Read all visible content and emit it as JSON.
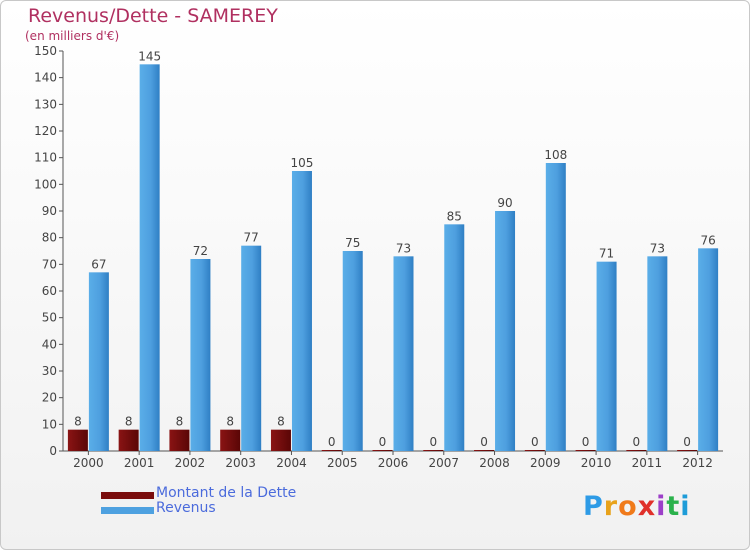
{
  "title": "Revenus/Dette - SAMEREY",
  "subtitle": "(en milliers d'€)",
  "logo": {
    "letters": [
      "P",
      "r",
      "o",
      "x",
      "i",
      "t",
      "i"
    ],
    "colors": [
      "#2e9be6",
      "#e8a21a",
      "#f07a1a",
      "#e0302a",
      "#9c3fc8",
      "#2bb24c",
      "#1e9cd8"
    ]
  },
  "colors": {
    "dette": "#7a0c0c",
    "revenus": "#4ea1e0",
    "axis": "#555555",
    "label": "#444444"
  },
  "chart_data": {
    "type": "bar",
    "categories": [
      "2000",
      "2001",
      "2002",
      "2003",
      "2004",
      "2005",
      "2006",
      "2007",
      "2008",
      "2009",
      "2010",
      "2011",
      "2012"
    ],
    "series": [
      {
        "name": "Montant de la Dette",
        "values": [
          8,
          8,
          8,
          8,
          8,
          0,
          0,
          0,
          0,
          0,
          0,
          0,
          0
        ]
      },
      {
        "name": "Revenus",
        "values": [
          67,
          145,
          72,
          77,
          105,
          75,
          73,
          85,
          90,
          108,
          71,
          73,
          76
        ]
      }
    ],
    "yticks": [
      0,
      10,
      20,
      30,
      40,
      50,
      60,
      70,
      80,
      90,
      100,
      110,
      120,
      130,
      140,
      150
    ],
    "ylim": [
      0,
      150
    ],
    "grid": false,
    "legend_position": "bottom-left"
  }
}
